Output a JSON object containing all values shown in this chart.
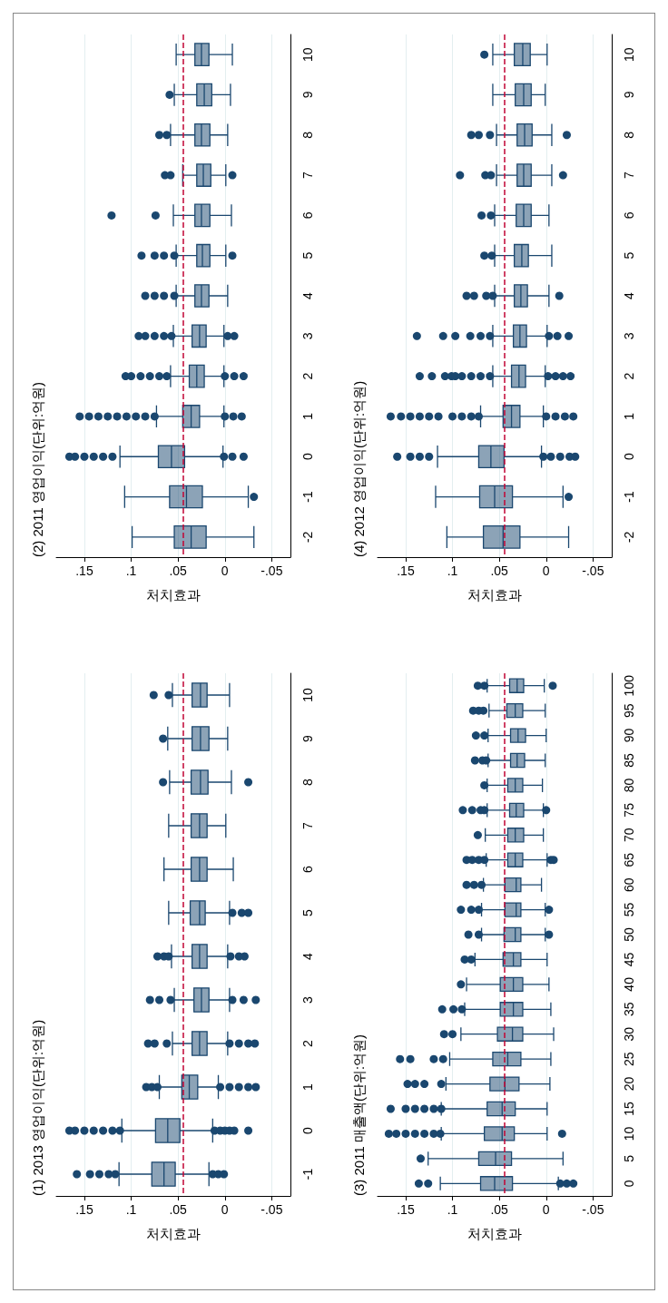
{
  "chart_data": [
    {
      "type": "box",
      "orientation": "horizontal",
      "title": "(1) 2013 영업이익(단위:억원)",
      "xlabel": "처치효과",
      "categories": [
        "10",
        "9",
        "8",
        "7",
        "6",
        "5",
        "4",
        "3",
        "2",
        "1",
        "0",
        "-1"
      ],
      "xlim": [
        0.18,
        -0.07
      ],
      "xticks": [
        {
          "value": 0.15,
          "label": ".15"
        },
        {
          "value": 0.1,
          "label": ".1"
        },
        {
          "value": 0.05,
          "label": ".05"
        },
        {
          "value": 0,
          "label": "0"
        },
        {
          "value": -0.05,
          "label": "-.05"
        }
      ],
      "grid": "x",
      "ref_lines": [
        {
          "axis": "x",
          "value": 0.045,
          "color": "#c10534",
          "line_style": "dashed"
        }
      ],
      "series": [
        {
          "color": "#1a476f",
          "boxes": [
            {
              "low": -0.005,
              "q1": 0.019,
              "median": 0.026,
              "q3": 0.035,
              "high": 0.056,
              "outliers": [
                0.06,
                0.076
              ]
            },
            {
              "low": -0.003,
              "q1": 0.017,
              "median": 0.026,
              "q3": 0.035,
              "high": 0.061,
              "outliers": [
                0.066
              ]
            },
            {
              "low": -0.007,
              "q1": 0.018,
              "median": 0.026,
              "q3": 0.036,
              "high": 0.059,
              "outliers": [
                0.066,
                -0.025
              ]
            },
            {
              "low": -0.001,
              "q1": 0.019,
              "median": 0.027,
              "q3": 0.036,
              "high": 0.06
            },
            {
              "low": -0.009,
              "q1": 0.019,
              "median": 0.027,
              "q3": 0.036,
              "high": 0.065
            },
            {
              "low": -0.005,
              "q1": 0.021,
              "median": 0.027,
              "q3": 0.037,
              "high": 0.06,
              "outliers": [
                -0.008,
                -0.018,
                -0.025
              ]
            },
            {
              "low": -0.003,
              "q1": 0.019,
              "median": 0.027,
              "q3": 0.035,
              "high": 0.057,
              "outliers": [
                0.072,
                0.065,
                0.06,
                -0.006,
                -0.015,
                -0.021
              ]
            },
            {
              "low": -0.005,
              "q1": 0.017,
              "median": 0.025,
              "q3": 0.033,
              "high": 0.054,
              "outliers": [
                0.08,
                0.07,
                0.058,
                -0.008,
                -0.02,
                -0.033
              ]
            },
            {
              "low": -0.003,
              "q1": 0.019,
              "median": 0.027,
              "q3": 0.035,
              "high": 0.056,
              "outliers": [
                0.082,
                0.075,
                0.062,
                -0.005,
                -0.015,
                -0.025,
                -0.032
              ]
            },
            {
              "low": 0.007,
              "q1": 0.029,
              "median": 0.038,
              "q3": 0.046,
              "high": 0.07,
              "outliers": [
                0.084,
                0.078,
                0.072,
                0.005,
                -0.005,
                -0.015,
                -0.025,
                -0.033
              ]
            },
            {
              "low": 0.013,
              "q1": 0.048,
              "median": 0.061,
              "q3": 0.074,
              "high": 0.11,
              "outliers": [
                0.166,
                0.16,
                0.15,
                0.14,
                0.13,
                0.12,
                0.112,
                0.011,
                0.005,
                0,
                -0.005,
                -0.01,
                -0.025
              ]
            },
            {
              "low": 0.017,
              "q1": 0.053,
              "median": 0.065,
              "q3": 0.078,
              "high": 0.113,
              "outliers": [
                0.158,
                0.144,
                0.134,
                0.124,
                0.117,
                0.013,
                0.007,
                0.001
              ]
            }
          ]
        }
      ]
    },
    {
      "type": "box",
      "orientation": "horizontal",
      "title": "(2) 2011 영업이익(단위:억원)",
      "xlabel": "처치효과",
      "categories": [
        "10",
        "9",
        "8",
        "7",
        "6",
        "5",
        "4",
        "3",
        "2",
        "1",
        "0",
        "-1",
        "-2"
      ],
      "xlim": [
        0.18,
        -0.07
      ],
      "xticks": [
        {
          "value": 0.15,
          "label": ".15"
        },
        {
          "value": 0.1,
          "label": ".1"
        },
        {
          "value": 0.05,
          "label": ".05"
        },
        {
          "value": 0,
          "label": "0"
        },
        {
          "value": -0.05,
          "label": "-.05"
        }
      ],
      "grid": "x",
      "ref_lines": [
        {
          "axis": "x",
          "value": 0.045,
          "color": "#c10534",
          "line_style": "dashed"
        }
      ],
      "series": [
        {
          "color": "#1a476f",
          "boxes": [
            {
              "low": -0.008,
              "q1": 0.017,
              "median": 0.025,
              "q3": 0.032,
              "high": 0.052
            },
            {
              "low": -0.006,
              "q1": 0.014,
              "median": 0.022,
              "q3": 0.03,
              "high": 0.054,
              "outliers": [
                0.059
              ]
            },
            {
              "low": -0.003,
              "q1": 0.016,
              "median": 0.025,
              "q3": 0.032,
              "high": 0.058,
              "outliers": [
                0.07,
                0.062
              ]
            },
            {
              "low": -0.001,
              "q1": 0.015,
              "median": 0.023,
              "q3": 0.03,
              "high": 0.045,
              "outliers": [
                0.064,
                0.058,
                -0.008
              ]
            },
            {
              "low": -0.007,
              "q1": 0.016,
              "median": 0.025,
              "q3": 0.032,
              "high": 0.055,
              "outliers": [
                0.121,
                0.074
              ]
            },
            {
              "low": -0.001,
              "q1": 0.016,
              "median": 0.024,
              "q3": 0.03,
              "high": 0.052,
              "outliers": [
                0.089,
                0.075,
                0.065,
                0.054,
                -0.008
              ]
            },
            {
              "low": -0.003,
              "q1": 0.017,
              "median": 0.025,
              "q3": 0.032,
              "high": 0.052,
              "outliers": [
                0.085,
                0.075,
                0.065,
                0.054
              ]
            },
            {
              "low": 0.001,
              "q1": 0.02,
              "median": 0.027,
              "q3": 0.035,
              "high": 0.055,
              "outliers": [
                0.092,
                0.085,
                0.075,
                0.065,
                0.057,
                -0.003,
                -0.01
              ]
            },
            {
              "low": 0.001,
              "q1": 0.022,
              "median": 0.03,
              "q3": 0.038,
              "high": 0.058,
              "outliers": [
                0.106,
                0.1,
                0.09,
                0.08,
                0.07,
                0.062,
                0,
                -0.01,
                -0.02
              ]
            },
            {
              "low": 0.001,
              "q1": 0.027,
              "median": 0.036,
              "q3": 0.045,
              "high": 0.073,
              "outliers": [
                0.155,
                0.145,
                0.135,
                0.125,
                0.115,
                0.105,
                0.095,
                0.085,
                0.075,
                0,
                -0.009,
                -0.018
              ]
            },
            {
              "low": 0.002,
              "q1": 0.043,
              "median": 0.057,
              "q3": 0.071,
              "high": 0.112,
              "outliers": [
                0.166,
                0.16,
                0.15,
                0.14,
                0.13,
                0.12,
                0.001,
                -0.008,
                -0.02
              ]
            },
            {
              "low": -0.025,
              "q1": 0.024,
              "median": 0.041,
              "q3": 0.059,
              "high": 0.107,
              "outliers": [
                -0.031
              ]
            },
            {
              "low": -0.031,
              "q1": 0.02,
              "median": 0.036,
              "q3": 0.054,
              "high": 0.099
            }
          ]
        }
      ]
    },
    {
      "type": "box",
      "orientation": "horizontal",
      "title": "(3) 2011 매출액(단위:억원)",
      "xlabel": "처치효과",
      "categories": [
        "100",
        "95",
        "90",
        "85",
        "80",
        "75",
        "70",
        "65",
        "60",
        "55",
        "50",
        "45",
        "40",
        "35",
        "30",
        "25",
        "20",
        "15",
        "10",
        "5",
        "0"
      ],
      "xlim": [
        0.18,
        -0.07
      ],
      "xticks": [
        {
          "value": 0.15,
          "label": ".15"
        },
        {
          "value": 0.1,
          "label": ".1"
        },
        {
          "value": 0.05,
          "label": ".05"
        },
        {
          "value": 0,
          "label": "0"
        },
        {
          "value": -0.05,
          "label": "-.05"
        }
      ],
      "grid": "x",
      "ref_lines": [
        {
          "axis": "x",
          "value": 0.045,
          "color": "#c10534",
          "line_style": "dashed"
        }
      ],
      "series": [
        {
          "color": "#1a476f",
          "boxes": [
            {
              "low": 0.002,
              "q1": 0.024,
              "median": 0.031,
              "q3": 0.039,
              "high": 0.063,
              "outliers": [
                0.073,
                0.066,
                -0.007
              ]
            },
            {
              "low": 0.001,
              "q1": 0.025,
              "median": 0.033,
              "q3": 0.042,
              "high": 0.061,
              "outliers": [
                0.078,
                0.072,
                0.067
              ]
            },
            {
              "low": 0,
              "q1": 0.022,
              "median": 0.03,
              "q3": 0.038,
              "high": 0.062,
              "outliers": [
                0.075,
                0.066
              ]
            },
            {
              "low": 0.001,
              "q1": 0.023,
              "median": 0.031,
              "q3": 0.038,
              "high": 0.062,
              "outliers": [
                0.076,
                0.068,
                0.064
              ]
            },
            {
              "low": 0.004,
              "q1": 0.025,
              "median": 0.033,
              "q3": 0.041,
              "high": 0.063,
              "outliers": [
                0.066
              ]
            },
            {
              "low": 0.003,
              "q1": 0.024,
              "median": 0.032,
              "q3": 0.039,
              "high": 0.063,
              "outliers": [
                0.089,
                0.079,
                0.07,
                0.066,
                0
              ]
            },
            {
              "low": 0.003,
              "q1": 0.024,
              "median": 0.033,
              "q3": 0.041,
              "high": 0.065,
              "outliers": [
                0.073
              ]
            },
            {
              "low": -0.001,
              "q1": 0.025,
              "median": 0.033,
              "q3": 0.041,
              "high": 0.064,
              "outliers": [
                0.085,
                0.079,
                0.072,
                0.066,
                -0.005,
                -0.008
              ]
            },
            {
              "low": 0.005,
              "q1": 0.027,
              "median": 0.032,
              "q3": 0.044,
              "high": 0.067,
              "outliers": [
                0.085,
                0.077,
                0.069
              ]
            },
            {
              "low": 0.001,
              "q1": 0.027,
              "median": 0.032,
              "q3": 0.044,
              "high": 0.069,
              "outliers": [
                0.091,
                0.08,
                0.072,
                -0.003
              ]
            },
            {
              "low": 0.001,
              "q1": 0.027,
              "median": 0.033,
              "q3": 0.045,
              "high": 0.069,
              "outliers": [
                0.083,
                0.072,
                -0.003
              ]
            },
            {
              "low": -0.001,
              "q1": 0.027,
              "median": 0.035,
              "q3": 0.046,
              "high": 0.076,
              "outliers": [
                0.087,
                0.08
              ]
            },
            {
              "low": -0.003,
              "q1": 0.025,
              "median": 0.035,
              "q3": 0.049,
              "high": 0.085,
              "outliers": [
                0.091
              ]
            },
            {
              "low": -0.005,
              "q1": 0.025,
              "median": 0.035,
              "q3": 0.049,
              "high": 0.087,
              "outliers": [
                0.111,
                0.099,
                0.09
              ]
            },
            {
              "low": -0.008,
              "q1": 0.025,
              "median": 0.036,
              "q3": 0.052,
              "high": 0.091,
              "outliers": [
                0.109,
                0.1
              ]
            },
            {
              "low": -0.005,
              "q1": 0.027,
              "median": 0.041,
              "q3": 0.057,
              "high": 0.103,
              "outliers": [
                0.156,
                0.145,
                0.12,
                0.11
              ]
            },
            {
              "low": -0.004,
              "q1": 0.029,
              "median": 0.044,
              "q3": 0.06,
              "high": 0.107,
              "outliers": [
                0.148,
                0.14,
                0.13,
                0.112
              ]
            },
            {
              "low": -0.001,
              "q1": 0.033,
              "median": 0.047,
              "q3": 0.063,
              "high": 0.112,
              "outliers": [
                0.166,
                0.15,
                0.14,
                0.13,
                0.12,
                0.112
              ]
            },
            {
              "low": -0.001,
              "q1": 0.034,
              "median": 0.047,
              "q3": 0.066,
              "high": 0.112,
              "outliers": [
                0.168,
                0.16,
                0.15,
                0.14,
                0.13,
                0.12,
                0.113,
                -0.017
              ]
            },
            {
              "low": -0.018,
              "q1": 0.037,
              "median": 0.054,
              "q3": 0.072,
              "high": 0.126,
              "outliers": [
                0.134
              ]
            },
            {
              "low": -0.013,
              "q1": 0.036,
              "median": 0.055,
              "q3": 0.07,
              "high": 0.113,
              "outliers": [
                0.136,
                0.126,
                -0.015,
                -0.022,
                -0.029
              ]
            }
          ]
        }
      ]
    },
    {
      "type": "box",
      "orientation": "horizontal",
      "title": "(4) 2012 영업이익(단위:억원)",
      "xlabel": "처치효과",
      "categories": [
        "10",
        "9",
        "8",
        "7",
        "6",
        "5",
        "4",
        "3",
        "2",
        "1",
        "0",
        "-1",
        "-2"
      ],
      "xlim": [
        0.18,
        -0.07
      ],
      "xticks": [
        {
          "value": 0.15,
          "label": ".15"
        },
        {
          "value": 0.1,
          "label": ".1"
        },
        {
          "value": 0.05,
          "label": ".05"
        },
        {
          "value": 0,
          "label": "0"
        },
        {
          "value": -0.05,
          "label": "-.05"
        }
      ],
      "grid": "x",
      "ref_lines": [
        {
          "axis": "x",
          "value": 0.045,
          "color": "#c10534",
          "line_style": "dashed"
        }
      ],
      "series": [
        {
          "color": "#1a476f",
          "boxes": [
            {
              "low": -0.001,
              "q1": 0.017,
              "median": 0.025,
              "q3": 0.034,
              "high": 0.057,
              "outliers": [
                0.066
              ]
            },
            {
              "low": 0.001,
              "q1": 0.016,
              "median": 0.024,
              "q3": 0.033,
              "high": 0.057
            },
            {
              "low": -0.006,
              "q1": 0.015,
              "median": 0.023,
              "q3": 0.031,
              "high": 0.053,
              "outliers": [
                0.08,
                0.072,
                0.06,
                -0.022
              ]
            },
            {
              "low": -0.006,
              "q1": 0.016,
              "median": 0.024,
              "q3": 0.031,
              "high": 0.053,
              "outliers": [
                0.092,
                0.065,
                0.059,
                -0.018
              ]
            },
            {
              "low": -0.003,
              "q1": 0.016,
              "median": 0.024,
              "q3": 0.032,
              "high": 0.055,
              "outliers": [
                0.069,
                0.059
              ]
            },
            {
              "low": -0.006,
              "q1": 0.019,
              "median": 0.026,
              "q3": 0.034,
              "high": 0.055,
              "outliers": [
                0.066,
                0.058
              ]
            },
            {
              "low": -0.003,
              "q1": 0.02,
              "median": 0.027,
              "q3": 0.034,
              "high": 0.055,
              "outliers": [
                0.085,
                0.077,
                0.064,
                0.057,
                -0.014
              ]
            },
            {
              "low": -0.001,
              "q1": 0.021,
              "median": 0.028,
              "q3": 0.035,
              "high": 0.057,
              "outliers": [
                0.138,
                0.11,
                0.097,
                0.081,
                0.07,
                0.06,
                -0.003,
                -0.012,
                -0.024
              ]
            },
            {
              "low": 0.001,
              "q1": 0.022,
              "median": 0.029,
              "q3": 0.037,
              "high": 0.057,
              "outliers": [
                0.135,
                0.122,
                0.108,
                0.101,
                0.097,
                0.09,
                0.08,
                0.07,
                0.06,
                -0.002,
                -0.01,
                -0.018,
                -0.026
              ]
            },
            {
              "low": 0.003,
              "q1": 0.028,
              "median": 0.037,
              "q3": 0.046,
              "high": 0.07,
              "outliers": [
                0.166,
                0.155,
                0.145,
                0.135,
                0.125,
                0.115,
                0.1,
                0.09,
                0.08,
                0.072,
                0,
                -0.01,
                -0.02,
                -0.029
              ]
            },
            {
              "low": 0.005,
              "q1": 0.045,
              "median": 0.059,
              "q3": 0.072,
              "high": 0.116,
              "outliers": [
                0.159,
                0.145,
                0.135,
                0.125,
                0.003,
                -0.005,
                -0.015,
                -0.025,
                -0.031
              ]
            },
            {
              "low": -0.018,
              "q1": 0.036,
              "median": 0.055,
              "q3": 0.071,
              "high": 0.118,
              "outliers": [
                -0.024
              ]
            },
            {
              "low": -0.024,
              "q1": 0.028,
              "median": 0.046,
              "q3": 0.067,
              "high": 0.106
            }
          ]
        }
      ]
    }
  ]
}
